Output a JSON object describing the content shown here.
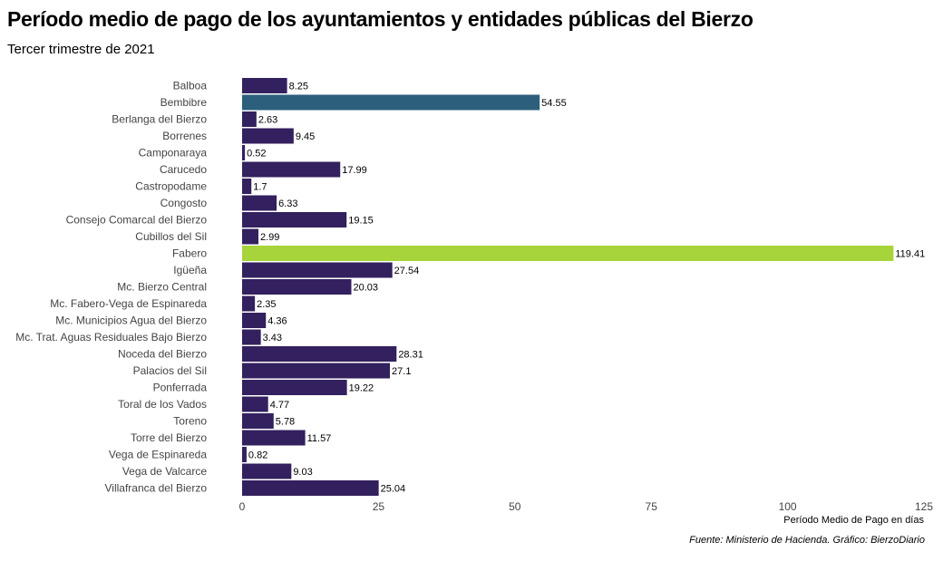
{
  "chart_data": {
    "type": "bar",
    "orientation": "horizontal",
    "title": "Período medio de pago de los ayuntamientos y entidades públicas del Bierzo",
    "subtitle": "Tercer trimestre de 2021",
    "xlabel": "Período Medio de Pago en días",
    "ylabel": "",
    "xlim": [
      0,
      125
    ],
    "xticks": [
      0,
      25,
      50,
      75,
      100,
      125
    ],
    "grid": false,
    "caption": "Fuente: Ministerio de Hacienda. Gráfico: BierzoDiario",
    "categories": [
      "Balboa",
      "Bembibre",
      "Berlanga del Bierzo",
      "Borrenes",
      "Camponaraya",
      "Carucedo",
      "Castropodame",
      "Congosto",
      "Consejo Comarcal del Bierzo",
      "Cubillos del Sil",
      "Fabero",
      "Igüeña",
      "Mc. Bierzo Central",
      "Mc. Fabero-Vega de Espinareda",
      "Mc. Municipios Agua del Bierzo",
      "Mc. Trat. Aguas Residuales Bajo Bierzo",
      "Noceda del Bierzo",
      "Palacios del Sil",
      "Ponferrada",
      "Toral de los Vados",
      "Toreno",
      "Torre del Bierzo",
      "Vega de Espinareda",
      "Vega de Valcarce",
      "Villafranca del Bierzo"
    ],
    "values": [
      8.25,
      54.55,
      2.63,
      9.45,
      0.52,
      17.99,
      1.7,
      6.33,
      19.15,
      2.99,
      119.41,
      27.54,
      20.03,
      2.35,
      4.36,
      3.43,
      28.31,
      27.1,
      19.22,
      4.77,
      5.78,
      11.57,
      0.82,
      9.03,
      25.04
    ],
    "value_labels": [
      "8.25",
      "54.55",
      "2.63",
      "9.45",
      "0.52",
      "17.99",
      "1.7",
      "6.33",
      "19.15",
      "2.99",
      "119.41",
      "27.54",
      "20.03",
      "2.35",
      "4.36",
      "3.43",
      "28.31",
      "27.1",
      "19.22",
      "4.77",
      "5.78",
      "11.57",
      "0.82",
      "9.03",
      "25.04"
    ],
    "colors": {
      "default": "#33205e",
      "Bembibre": "#2b5f7c",
      "Fabero": "#a6d43a"
    }
  }
}
